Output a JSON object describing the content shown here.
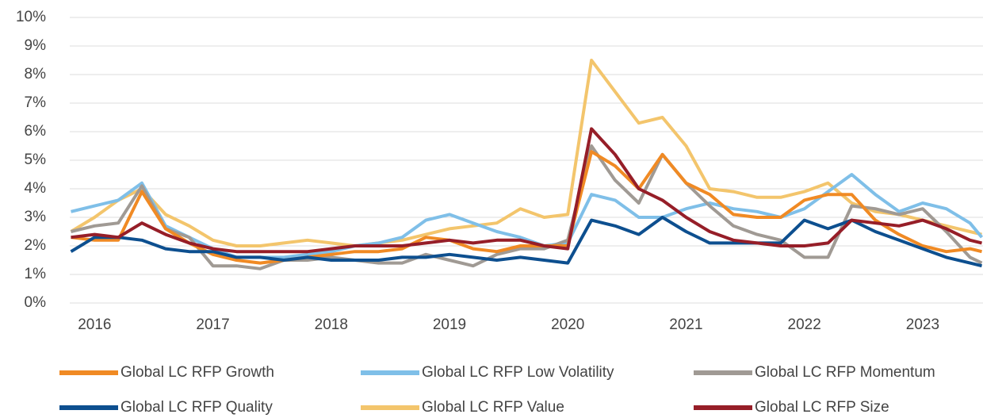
{
  "chart_data": {
    "type": "line",
    "x": [
      2015.8,
      2016.0,
      2016.2,
      2016.4,
      2016.6,
      2016.8,
      2017.0,
      2017.2,
      2017.4,
      2017.6,
      2017.8,
      2018.0,
      2018.2,
      2018.4,
      2018.6,
      2018.8,
      2019.0,
      2019.2,
      2019.4,
      2019.6,
      2019.8,
      2020.0,
      2020.2,
      2020.4,
      2020.6,
      2020.8,
      2021.0,
      2021.2,
      2021.4,
      2021.6,
      2021.8,
      2022.0,
      2022.2,
      2022.4,
      2022.6,
      2022.8,
      2023.0,
      2023.2,
      2023.4,
      2023.5
    ],
    "series": [
      {
        "name": "Global LC RFP Growth",
        "color": "#f08a24",
        "values": [
          2.3,
          2.2,
          2.2,
          3.9,
          2.6,
          2.1,
          1.7,
          1.5,
          1.4,
          1.5,
          1.6,
          1.7,
          1.8,
          1.8,
          1.9,
          2.3,
          2.2,
          1.9,
          1.8,
          2.0,
          2.0,
          2.0,
          5.3,
          4.8,
          4.0,
          5.2,
          4.2,
          3.8,
          3.1,
          3.0,
          3.0,
          3.6,
          3.8,
          3.8,
          2.9,
          2.4,
          2.0,
          1.8,
          1.9,
          1.8
        ]
      },
      {
        "name": "Global LC RFP Low Volatility",
        "color": "#7fbfe8",
        "values": [
          3.2,
          3.4,
          3.6,
          4.2,
          2.7,
          2.3,
          1.9,
          1.6,
          1.6,
          1.6,
          1.7,
          1.8,
          2.0,
          2.1,
          2.3,
          2.9,
          3.1,
          2.8,
          2.5,
          2.3,
          2.0,
          2.1,
          3.8,
          3.6,
          3.0,
          3.0,
          3.3,
          3.5,
          3.3,
          3.2,
          3.0,
          3.3,
          3.9,
          4.5,
          3.8,
          3.2,
          3.5,
          3.3,
          2.8,
          2.3
        ]
      },
      {
        "name": "Global LC RFP Momentum",
        "color": "#a09a94",
        "values": [
          2.5,
          2.7,
          2.8,
          4.1,
          2.6,
          2.3,
          1.3,
          1.3,
          1.2,
          1.5,
          1.5,
          1.6,
          1.5,
          1.4,
          1.4,
          1.7,
          1.5,
          1.3,
          1.7,
          1.9,
          1.9,
          2.2,
          5.5,
          4.3,
          3.5,
          5.2,
          4.2,
          3.4,
          2.7,
          2.4,
          2.2,
          1.6,
          1.6,
          3.4,
          3.3,
          3.1,
          3.3,
          2.5,
          1.6,
          1.4
        ]
      },
      {
        "name": "Global LC RFP Quality",
        "color": "#0d4f8f",
        "values": [
          1.8,
          2.3,
          2.3,
          2.2,
          1.9,
          1.8,
          1.8,
          1.6,
          1.6,
          1.5,
          1.6,
          1.5,
          1.5,
          1.5,
          1.6,
          1.6,
          1.7,
          1.6,
          1.5,
          1.6,
          1.5,
          1.4,
          2.9,
          2.7,
          2.4,
          3.0,
          2.5,
          2.1,
          2.1,
          2.1,
          2.1,
          2.9,
          2.6,
          2.9,
          2.5,
          2.2,
          1.9,
          1.6,
          1.4,
          1.3
        ]
      },
      {
        "name": "Global LC RFP Value",
        "color": "#f3c56c",
        "values": [
          2.5,
          3.0,
          3.6,
          4.0,
          3.1,
          2.7,
          2.2,
          2.0,
          2.0,
          2.1,
          2.2,
          2.1,
          2.0,
          2.1,
          2.2,
          2.4,
          2.6,
          2.7,
          2.8,
          3.3,
          3.0,
          3.1,
          8.5,
          7.4,
          6.3,
          6.5,
          5.5,
          4.0,
          3.9,
          3.7,
          3.7,
          3.9,
          4.2,
          3.5,
          3.2,
          3.1,
          2.9,
          2.7,
          2.5,
          2.4
        ]
      },
      {
        "name": "Global LC RFP Size",
        "color": "#961e28",
        "values": [
          2.3,
          2.4,
          2.3,
          2.8,
          2.4,
          2.1,
          1.9,
          1.8,
          1.8,
          1.8,
          1.8,
          1.9,
          2.0,
          2.0,
          2.0,
          2.1,
          2.2,
          2.1,
          2.2,
          2.2,
          2.0,
          1.9,
          6.1,
          5.2,
          4.0,
          3.6,
          3.0,
          2.5,
          2.2,
          2.1,
          2.0,
          2.0,
          2.1,
          2.9,
          2.8,
          2.7,
          2.9,
          2.6,
          2.2,
          2.1
        ]
      }
    ],
    "xlim": [
      2015.79,
      2023.51
    ],
    "xticks": [
      2016,
      2017,
      2018,
      2019,
      2020,
      2021,
      2022,
      2023
    ],
    "ylim": [
      0,
      10
    ],
    "yticks": [
      {
        "value": 0,
        "label": "0%"
      },
      {
        "value": 1,
        "label": "1%"
      },
      {
        "value": 2,
        "label": "2%"
      },
      {
        "value": 3,
        "label": "3%"
      },
      {
        "value": 4,
        "label": "4%"
      },
      {
        "value": 5,
        "label": "5%"
      },
      {
        "value": 6,
        "label": "6%"
      },
      {
        "value": 7,
        "label": "7%"
      },
      {
        "value": 8,
        "label": "8%"
      },
      {
        "value": 9,
        "label": "9%"
      },
      {
        "value": 10,
        "label": "10%"
      }
    ],
    "grid": true,
    "legend": "bottom"
  }
}
